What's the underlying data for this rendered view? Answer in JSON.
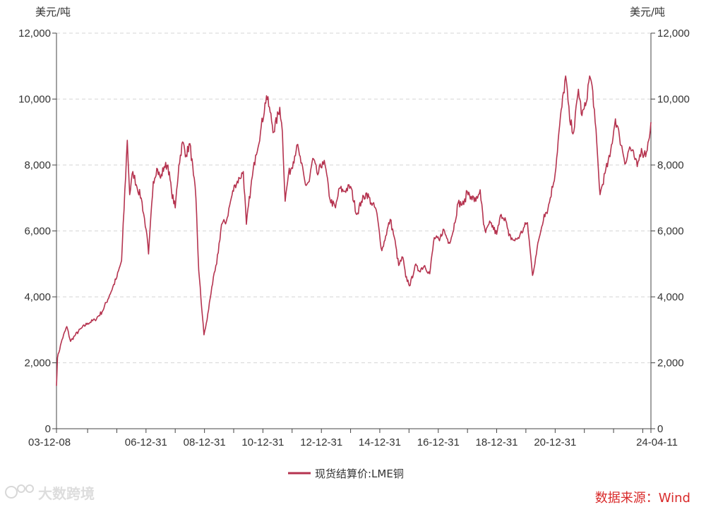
{
  "chart_data": {
    "type": "line",
    "left_unit": "美元/吨",
    "right_unit": "美元/吨",
    "y_ticks": [
      "0",
      "2,000",
      "4,000",
      "6,000",
      "8,000",
      "10,000",
      "12,000"
    ],
    "y_values": [
      0,
      2000,
      4000,
      6000,
      8000,
      10000,
      12000
    ],
    "ylim": [
      0,
      12000
    ],
    "x_ticks": [
      "03-12-08",
      "06-12-31",
      "08-12-31",
      "10-12-31",
      "12-12-31",
      "14-12-31",
      "16-12-31",
      "18-12-31",
      "20-12-31",
      "24-04-11"
    ],
    "x_tick_dates": [
      "2003-12-08",
      "2006-12-31",
      "2008-12-31",
      "2010-12-31",
      "2012-12-31",
      "2014-12-31",
      "2016-12-31",
      "2018-12-31",
      "2020-12-31",
      "2024-04-11"
    ],
    "x_minor_dates": [
      "2004-12-31",
      "2005-12-31",
      "2007-12-31",
      "2009-12-31",
      "2011-12-31",
      "2013-12-31",
      "2015-12-31",
      "2017-12-31",
      "2019-12-31",
      "2021-12-31",
      "2022-12-31",
      "2023-12-31"
    ],
    "xlim": [
      "2003-12-08",
      "2024-04-11"
    ],
    "grid": "horizontal-dashed",
    "legend_position": "bottom-center",
    "series": [
      {
        "name": "现货结算价:LME铜",
        "color": "#b5334f",
        "points": [
          [
            "2003-12-08",
            1300
          ],
          [
            "2003-12-20",
            2150
          ],
          [
            "2004-02-15",
            2700
          ],
          [
            "2004-04-15",
            3100
          ],
          [
            "2004-06-01",
            2650
          ],
          [
            "2004-08-01",
            2850
          ],
          [
            "2004-10-15",
            3050
          ],
          [
            "2005-01-01",
            3200
          ],
          [
            "2005-04-01",
            3300
          ],
          [
            "2005-07-01",
            3550
          ],
          [
            "2005-10-01",
            4050
          ],
          [
            "2006-01-01",
            4600
          ],
          [
            "2006-03-01",
            5100
          ],
          [
            "2006-05-11",
            8750
          ],
          [
            "2006-06-10",
            7100
          ],
          [
            "2006-07-20",
            7800
          ],
          [
            "2006-09-01",
            7400
          ],
          [
            "2006-11-01",
            7000
          ],
          [
            "2007-01-01",
            6050
          ],
          [
            "2007-02-01",
            5300
          ],
          [
            "2007-04-01",
            7500
          ],
          [
            "2007-05-15",
            7900
          ],
          [
            "2007-07-01",
            7600
          ],
          [
            "2007-08-15",
            7950
          ],
          [
            "2007-10-01",
            8000
          ],
          [
            "2007-11-15",
            7200
          ],
          [
            "2007-12-31",
            6700
          ],
          [
            "2008-02-15",
            8000
          ],
          [
            "2008-04-01",
            8700
          ],
          [
            "2008-05-15",
            8300
          ],
          [
            "2008-07-01",
            8650
          ],
          [
            "2008-08-15",
            7700
          ],
          [
            "2008-09-15",
            7000
          ],
          [
            "2008-10-20",
            4800
          ],
          [
            "2008-12-24",
            2850
          ],
          [
            "2009-02-01",
            3300
          ],
          [
            "2009-04-01",
            4300
          ],
          [
            "2009-06-01",
            5000
          ],
          [
            "2009-08-01",
            6200
          ],
          [
            "2009-10-01",
            6300
          ],
          [
            "2009-12-01",
            7000
          ],
          [
            "2010-01-15",
            7400
          ],
          [
            "2010-03-15",
            7600
          ],
          [
            "2010-04-30",
            7800
          ],
          [
            "2010-06-08",
            6200
          ],
          [
            "2010-08-01",
            7300
          ],
          [
            "2010-10-01",
            8300
          ],
          [
            "2010-12-01",
            9000
          ],
          [
            "2011-02-14",
            10100
          ],
          [
            "2011-04-01",
            9600
          ],
          [
            "2011-05-15",
            9000
          ],
          [
            "2011-07-30",
            9750
          ],
          [
            "2011-09-01",
            9000
          ],
          [
            "2011-10-05",
            6900
          ],
          [
            "2011-11-15",
            7700
          ],
          [
            "2012-01-15",
            8100
          ],
          [
            "2012-02-28",
            8600
          ],
          [
            "2012-04-01",
            8300
          ],
          [
            "2012-06-15",
            7400
          ],
          [
            "2012-08-01",
            7500
          ],
          [
            "2012-09-15",
            8200
          ],
          [
            "2012-11-15",
            7700
          ],
          [
            "2013-01-15",
            8100
          ],
          [
            "2013-02-15",
            8000
          ],
          [
            "2013-04-18",
            6950
          ],
          [
            "2013-06-25",
            6700
          ],
          [
            "2013-08-15",
            7300
          ],
          [
            "2013-10-01",
            7200
          ],
          [
            "2013-12-31",
            7350
          ],
          [
            "2014-03-19",
            6500
          ],
          [
            "2014-05-15",
            6900
          ],
          [
            "2014-07-20",
            7150
          ],
          [
            "2014-09-15",
            6850
          ],
          [
            "2014-11-15",
            6650
          ],
          [
            "2015-01-26",
            5400
          ],
          [
            "2015-03-15",
            5850
          ],
          [
            "2015-05-10",
            6350
          ],
          [
            "2015-07-01",
            5800
          ],
          [
            "2015-08-24",
            4950
          ],
          [
            "2015-10-15",
            5200
          ],
          [
            "2015-11-20",
            4600
          ],
          [
            "2016-01-15",
            4350
          ],
          [
            "2016-03-15",
            4950
          ],
          [
            "2016-05-01",
            4800
          ],
          [
            "2016-07-15",
            4950
          ],
          [
            "2016-09-15",
            4700
          ],
          [
            "2016-11-11",
            5800
          ],
          [
            "2017-01-15",
            5700
          ],
          [
            "2017-03-01",
            6050
          ],
          [
            "2017-05-15",
            5650
          ],
          [
            "2017-07-01",
            5950
          ],
          [
            "2017-09-05",
            6850
          ],
          [
            "2017-11-15",
            6800
          ],
          [
            "2017-12-28",
            7200
          ],
          [
            "2018-02-15",
            7050
          ],
          [
            "2018-04-15",
            6900
          ],
          [
            "2018-06-07",
            7250
          ],
          [
            "2018-07-20",
            6200
          ],
          [
            "2018-08-15",
            5950
          ],
          [
            "2018-10-15",
            6250
          ],
          [
            "2018-12-31",
            5900
          ],
          [
            "2019-02-25",
            6500
          ],
          [
            "2019-04-15",
            6400
          ],
          [
            "2019-06-01",
            5850
          ],
          [
            "2019-08-15",
            5700
          ],
          [
            "2019-10-15",
            5850
          ],
          [
            "2019-12-31",
            6200
          ],
          [
            "2020-01-20",
            6250
          ],
          [
            "2020-03-23",
            4650
          ],
          [
            "2020-05-01",
            5200
          ],
          [
            "2020-06-15",
            5800
          ],
          [
            "2020-08-15",
            6500
          ],
          [
            "2020-10-01",
            6650
          ],
          [
            "2020-12-31",
            7750
          ],
          [
            "2021-02-25",
            9200
          ],
          [
            "2021-05-11",
            10700
          ],
          [
            "2021-07-01",
            9350
          ],
          [
            "2021-08-20",
            9000
          ],
          [
            "2021-10-18",
            10300
          ],
          [
            "2021-12-01",
            9500
          ],
          [
            "2022-01-15",
            9800
          ],
          [
            "2022-03-07",
            10700
          ],
          [
            "2022-04-15",
            10250
          ],
          [
            "2022-05-15",
            9300
          ],
          [
            "2022-07-15",
            7100
          ],
          [
            "2022-09-15",
            7750
          ],
          [
            "2022-11-15",
            8250
          ],
          [
            "2023-01-23",
            9400
          ],
          [
            "2023-03-15",
            8850
          ],
          [
            "2023-05-31",
            8050
          ],
          [
            "2023-07-20",
            8550
          ],
          [
            "2023-09-15",
            8250
          ],
          [
            "2023-10-23",
            7950
          ],
          [
            "2023-12-15",
            8500
          ],
          [
            "2024-01-15",
            8300
          ],
          [
            "2024-02-15",
            8400
          ],
          [
            "2024-03-15",
            8750
          ],
          [
            "2024-04-11",
            9300
          ]
        ]
      }
    ]
  },
  "footer": {
    "source_label": "数据来源：Wind",
    "source_color": "#d92b2b",
    "watermark_text": "大数跨境",
    "watermark_icon": "brand-logo-icon"
  }
}
